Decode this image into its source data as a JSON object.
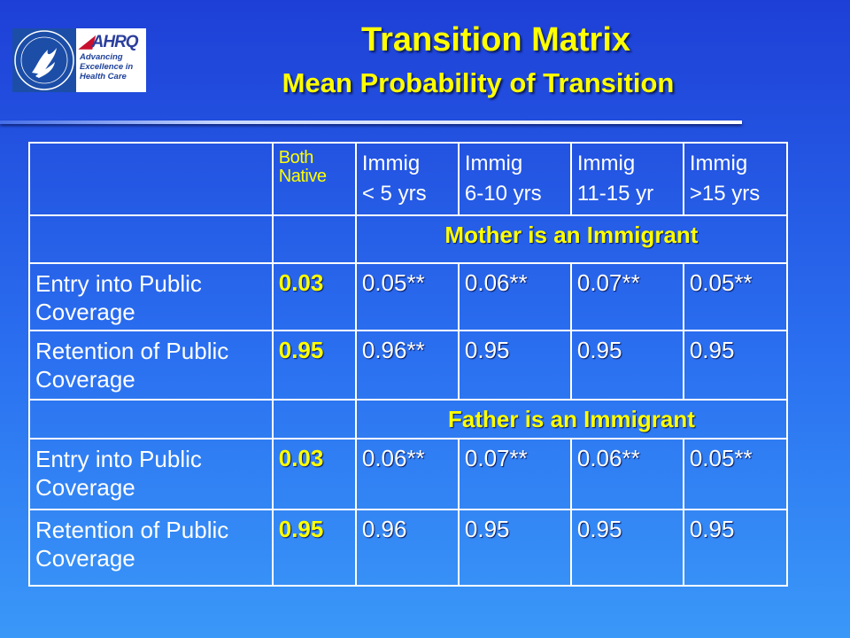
{
  "header": {
    "title": "Transition Matrix",
    "subtitle": "Mean Probability of Transition"
  },
  "logo": {
    "mark": "AHRQ",
    "tagline": [
      "Advancing",
      "Excellence in",
      "Health Care"
    ]
  },
  "table": {
    "columns": [
      {
        "line1": "Both",
        "line2": "Native"
      },
      {
        "line1": "Immig",
        "line2": "< 5 yrs"
      },
      {
        "line1": "Immig",
        "line2": "6-10 yrs"
      },
      {
        "line1": "Immig",
        "line2": "11-15 yr"
      },
      {
        "line1": "Immig",
        "line2": ">15 yrs"
      }
    ],
    "sections": [
      {
        "title": "Mother is an Immigrant",
        "rows": [
          {
            "label": "Entry into Public Coverage",
            "values": [
              "0.03",
              "0.05**",
              "0.06**",
              "0.07**",
              "0.05**"
            ]
          },
          {
            "label": "Retention of Public Coverage",
            "values": [
              "0.95",
              "0.96**",
              "0.95",
              "0.95",
              "0.95"
            ]
          }
        ]
      },
      {
        "title": "Father is an Immigrant",
        "rows": [
          {
            "label": "Entry into Public Coverage",
            "values": [
              "0.03",
              "0.06**",
              "0.07**",
              "0.06**",
              "0.05**"
            ]
          },
          {
            "label": "Retention of Public Coverage",
            "values": [
              "0.95",
              "0.96",
              "0.95",
              "0.95",
              "0.95"
            ]
          }
        ]
      }
    ]
  },
  "colors": {
    "accent_text": "#ffff00",
    "body_text": "#ffffff",
    "background_top": "#1e3fd6",
    "background_bottom": "#3a98f8"
  }
}
